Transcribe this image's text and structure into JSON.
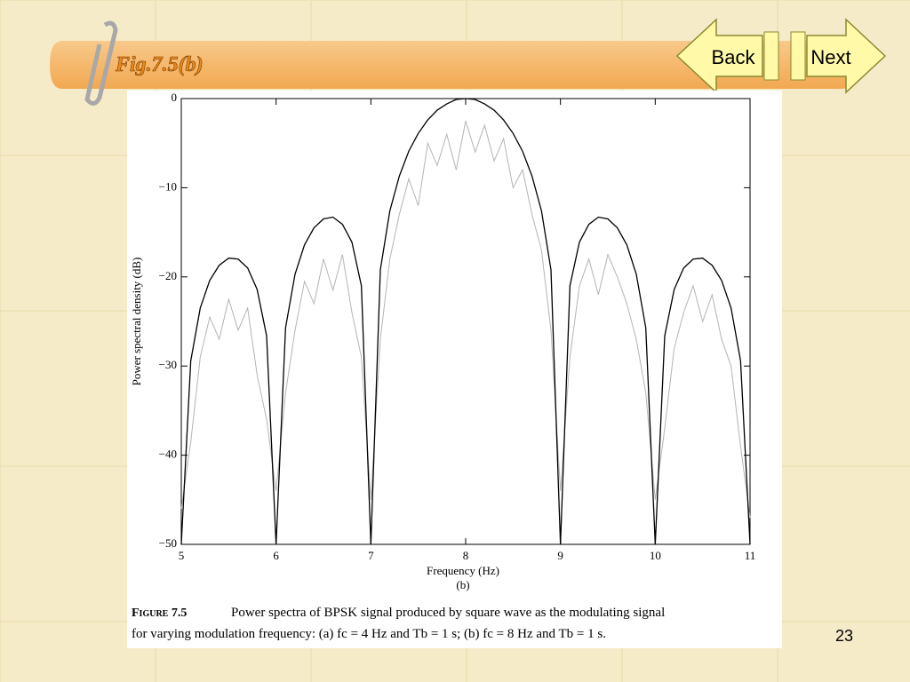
{
  "slide": {
    "title": "Fig.7.5(b)",
    "back": "Back",
    "next": "Next",
    "page_number": "23"
  },
  "chart_data": {
    "type": "line",
    "y_label": "Power spectral density (dB)",
    "x_label": "Frequency (Hz)",
    "sub_label": "(b)",
    "caption_label": "Figure 7.5",
    "caption_line1": "Power spectra of BPSK signal produced by square wave as the modulating signal",
    "caption_line2": "for varying modulation frequency: (a) fc = 4 Hz and Tb = 1 s; (b) fc = 8 Hz and Tb = 1 s.",
    "x": [
      5.0,
      5.1,
      5.2,
      5.3,
      5.4,
      5.5,
      5.6,
      5.7,
      5.8,
      5.9,
      6.0,
      6.1,
      6.2,
      6.3,
      6.4,
      6.5,
      6.6,
      6.7,
      6.8,
      6.9,
      7.0,
      7.1,
      7.2,
      7.3,
      7.4,
      7.5,
      7.6,
      7.7,
      7.8,
      7.9,
      8.0,
      8.1,
      8.2,
      8.3,
      8.4,
      8.5,
      8.6,
      8.7,
      8.8,
      8.9,
      9.0,
      9.1,
      9.2,
      9.3,
      9.4,
      9.5,
      9.6,
      9.7,
      9.8,
      9.9,
      10.0,
      10.1,
      10.2,
      10.3,
      10.4,
      10.5,
      10.6,
      10.7,
      10.8,
      10.9,
      11.0
    ],
    "series": [
      {
        "color": "#b4b4b4",
        "values": [
          -46,
          -38.5,
          -29,
          -24.5,
          -27,
          -22.5,
          -26,
          -23.5,
          -31,
          -36,
          -44,
          -33,
          -26,
          -20.5,
          -23,
          -18,
          -21.5,
          -17.5,
          -24,
          -29,
          -45,
          -27,
          -18,
          -13,
          -9,
          -12,
          -5,
          -7.5,
          -4,
          -8,
          -2.5,
          -6,
          -3,
          -7,
          -4.5,
          -10,
          -8,
          -13,
          -17,
          -26,
          -44,
          -29,
          -21,
          -18,
          -22,
          -17.5,
          -20,
          -23,
          -27,
          -33,
          -45,
          -37,
          -28,
          -24,
          -21,
          -25,
          -22,
          -27,
          -30,
          -39,
          -47
        ]
      },
      {
        "color": "#000000",
        "values": [
          -50,
          -29.4,
          -23.5,
          -20.4,
          -18.7,
          -17.9,
          -18.0,
          -19.0,
          -21.4,
          -26.6,
          -50,
          -25.7,
          -19.7,
          -16.4,
          -14.5,
          -13.5,
          -13.3,
          -14.1,
          -16.1,
          -21.0,
          -50,
          -19.2,
          -12.6,
          -8.7,
          -5.9,
          -3.9,
          -2.4,
          -1.3,
          -0.6,
          -0.1,
          0,
          -0.1,
          -0.6,
          -1.3,
          -2.4,
          -3.9,
          -5.9,
          -8.7,
          -12.6,
          -19.2,
          -50,
          -21.0,
          -16.1,
          -14.1,
          -13.3,
          -13.5,
          -14.5,
          -16.4,
          -19.7,
          -25.7,
          -50,
          -26.6,
          -21.4,
          -19.0,
          -18.0,
          -17.9,
          -18.7,
          -20.4,
          -23.5,
          -29.4,
          -50
        ]
      }
    ],
    "xlim": [
      5,
      11
    ],
    "xticks": [
      5,
      6,
      7,
      8,
      9,
      10,
      11
    ],
    "ylim": [
      -50,
      0
    ],
    "yticks": [
      0,
      {
        "value": -10,
        "label": "−10"
      },
      {
        "value": -20,
        "label": "−20"
      },
      {
        "value": -30,
        "label": "−30"
      },
      {
        "value": -40,
        "label": "−40"
      },
      {
        "value": -50,
        "label": "−50"
      }
    ]
  }
}
